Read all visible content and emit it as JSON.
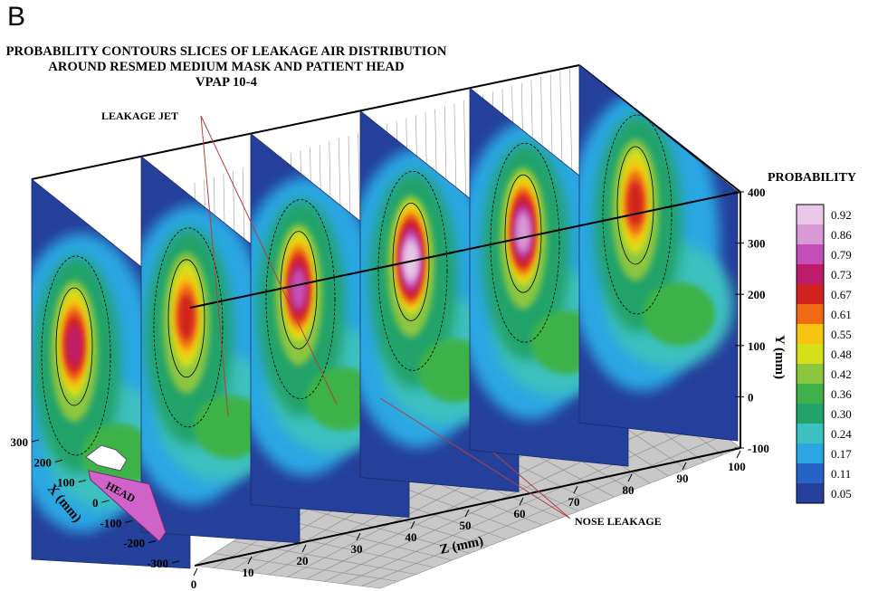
{
  "panel_label": "B",
  "chart_data": {
    "type": "heatmap",
    "title_lines": [
      "PROBABILITY CONTOURS SLICES OF LEAKAGE AIR DISTRIBUTION",
      "AROUND RESMED MEDIUM MASK AND PATIENT HEAD",
      "VPAP 10-4"
    ],
    "xlabel": "X (mm)",
    "ylabel": "Y (mm)",
    "zlabel": "Z (mm)",
    "x_ticks": [
      "300",
      "200",
      "100",
      "0",
      "-100",
      "-200",
      "-300"
    ],
    "y_ticks": [
      "400",
      "300",
      "200",
      "100",
      "0",
      "-100"
    ],
    "z_ticks": [
      "0",
      "10",
      "20",
      "30",
      "40",
      "50",
      "60",
      "70",
      "80",
      "90",
      "100"
    ],
    "xlim": [
      -300,
      300
    ],
    "ylim": [
      -100,
      400
    ],
    "zlim": [
      0,
      100
    ],
    "slice_z_positions": [
      0,
      20,
      40,
      60,
      80,
      100
    ],
    "annotations": [
      "LEAKAGE JET",
      "NOSE LEAKAGE",
      "HEAD"
    ],
    "legend": {
      "title": "PROBABILITY",
      "levels": [
        "0.92",
        "0.86",
        "0.79",
        "0.73",
        "0.67",
        "0.61",
        "0.55",
        "0.48",
        "0.42",
        "0.36",
        "0.30",
        "0.24",
        "0.17",
        "0.11",
        "0.05"
      ],
      "colors": [
        "#e8c8e6",
        "#d89ad6",
        "#c44fb8",
        "#bd1c6a",
        "#d2221f",
        "#f06a15",
        "#f6c510",
        "#d6e01a",
        "#8cc63f",
        "#3eb249",
        "#23a36b",
        "#3cc0c0",
        "#2aa6e3",
        "#2563c4",
        "#24409a"
      ]
    },
    "grid": true,
    "legend_position": "right"
  }
}
